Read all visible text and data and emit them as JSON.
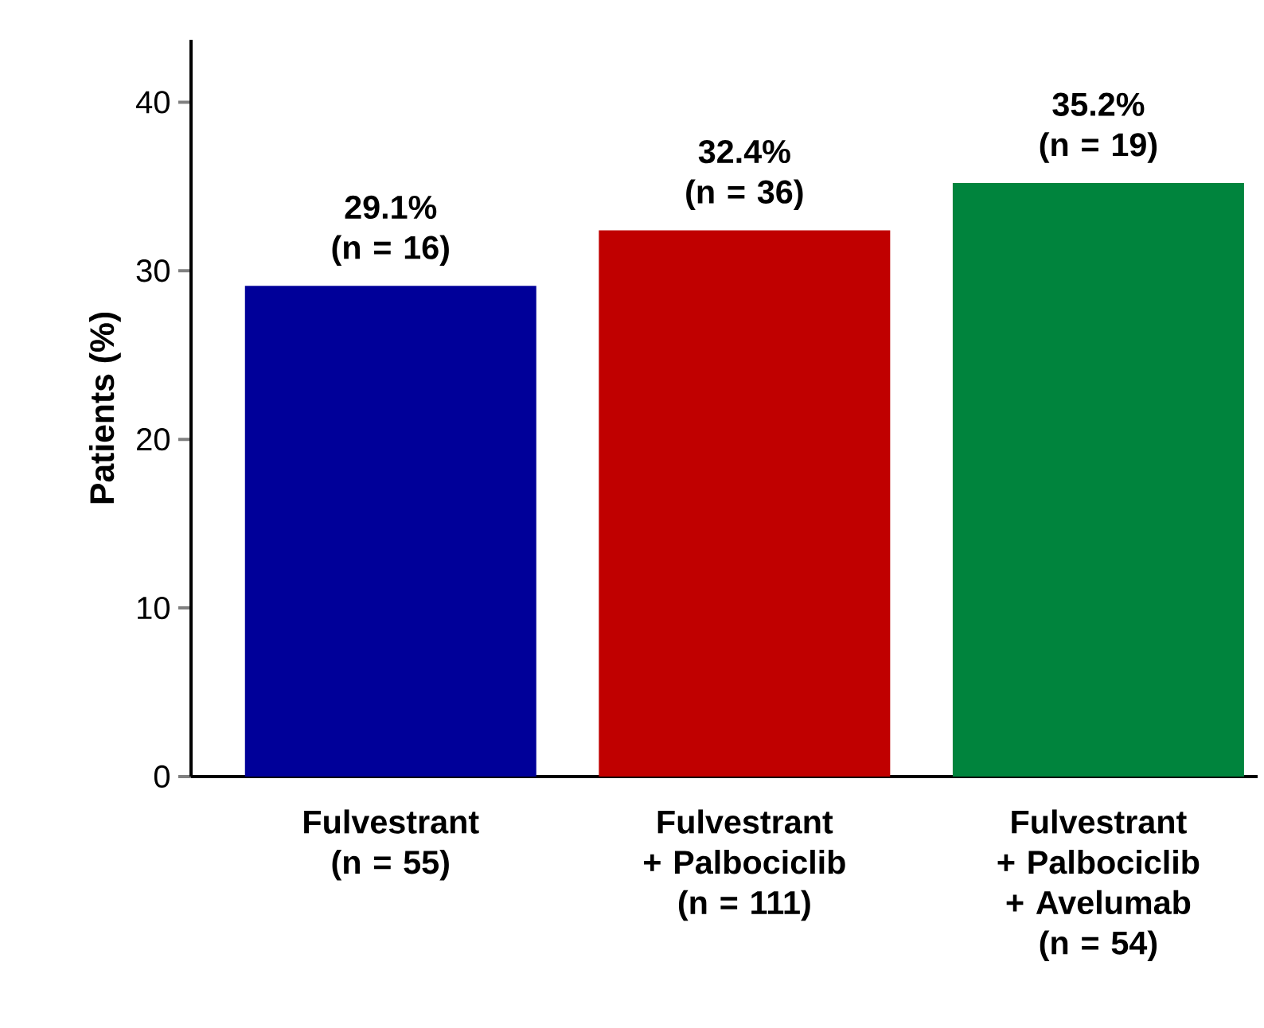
{
  "chart_data": {
    "type": "bar",
    "ylabel": "Patients (%)",
    "categories": [
      "Fulvestrant (n = 55)",
      "Fulvestrant + Palbociclib (n = 111)",
      "Fulvestrant + Palbociclib + Avelumab (n = 54)"
    ],
    "values": [
      29.1,
      32.4,
      35.2
    ],
    "value_labels": [
      "29.1% (n = 16)",
      "32.4% (n = 36)",
      "35.2% (n = 19)"
    ],
    "colors": [
      "#000099",
      "#c00000",
      "#00843d"
    ],
    "ylim": [
      0,
      43.7
    ],
    "yticks": [
      0,
      10,
      20,
      30,
      40
    ]
  }
}
